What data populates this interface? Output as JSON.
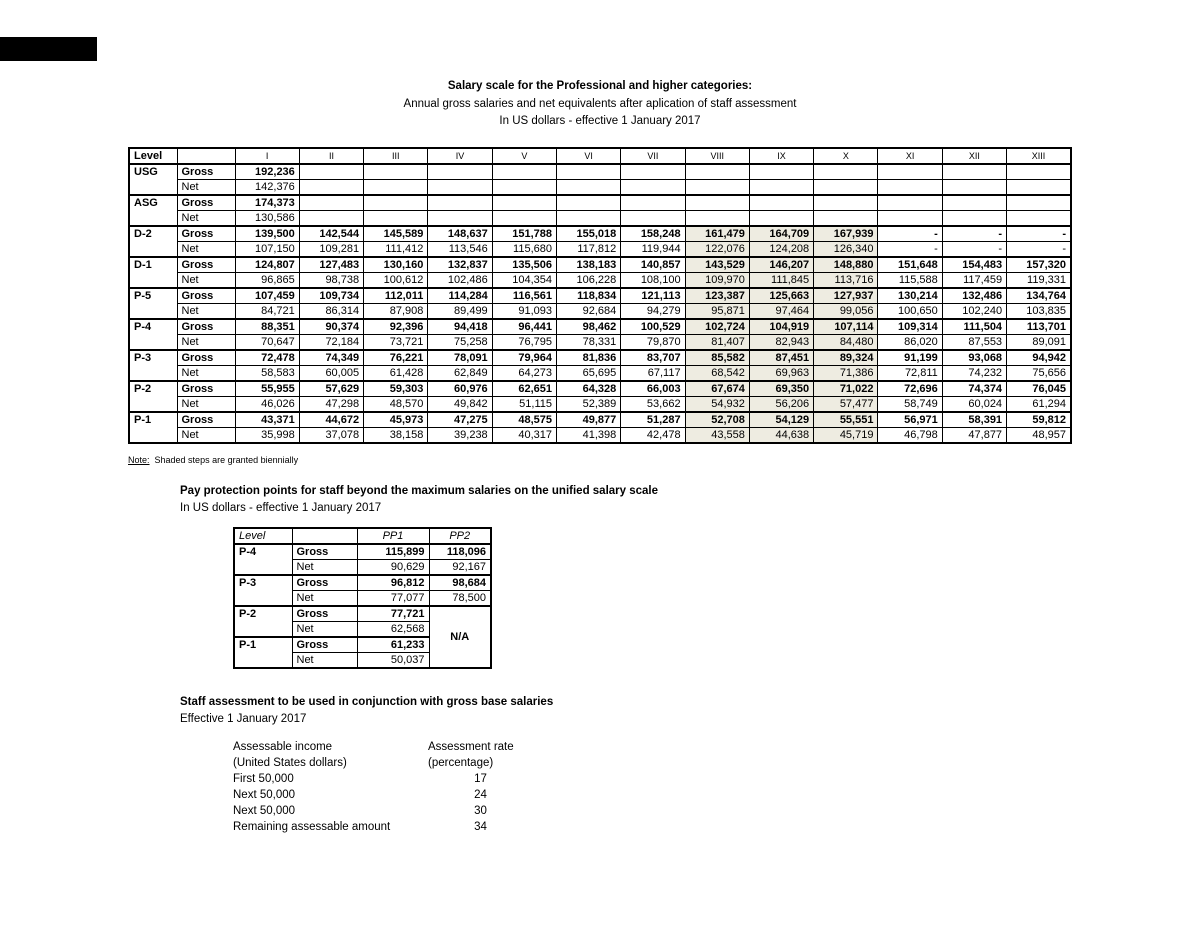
{
  "page": {
    "title_line1": "Salary scale for the Professional and higher categories:",
    "title_line2": "Annual gross salaries and net equivalents after aplication of staff assessment",
    "title_line3": "In US dollars - effective 1 January 2017"
  },
  "colors": {
    "shaded_step": "#EEECE1",
    "black_bar": "#000000"
  },
  "main_table": {
    "level_header": "Level",
    "gross_label": "Gross",
    "net_label": "Net",
    "columns": [
      "I",
      "II",
      "III",
      "IV",
      "V",
      "VI",
      "VII",
      "VIII",
      "IX",
      "X",
      "XI",
      "XII",
      "XIII"
    ],
    "rows": [
      {
        "level": "USG",
        "shaded_steps": [],
        "gross": [
          "192,236",
          "",
          "",
          "",
          "",
          "",
          "",
          "",
          "",
          "",
          "",
          "",
          ""
        ],
        "net": [
          "142,376",
          "",
          "",
          "",
          "",
          "",
          "",
          "",
          "",
          "",
          "",
          "",
          ""
        ]
      },
      {
        "level": "ASG",
        "shaded_steps": [],
        "gross": [
          "174,373",
          "",
          "",
          "",
          "",
          "",
          "",
          "",
          "",
          "",
          "",
          "",
          ""
        ],
        "net": [
          "130,586",
          "",
          "",
          "",
          "",
          "",
          "",
          "",
          "",
          "",
          "",
          "",
          ""
        ]
      },
      {
        "level": "D-2",
        "shaded_steps": [
          8,
          9,
          10
        ],
        "gross": [
          "139,500",
          "142,544",
          "145,589",
          "148,637",
          "151,788",
          "155,018",
          "158,248",
          "161,479",
          "164,709",
          "167,939",
          "-",
          "-",
          "-"
        ],
        "net": [
          "107,150",
          "109,281",
          "111,412",
          "113,546",
          "115,680",
          "117,812",
          "119,944",
          "122,076",
          "124,208",
          "126,340",
          "-",
          "-",
          "-"
        ]
      },
      {
        "level": "D-1",
        "shaded_steps": [
          8,
          9,
          10
        ],
        "gross": [
          "124,807",
          "127,483",
          "130,160",
          "132,837",
          "135,506",
          "138,183",
          "140,857",
          "143,529",
          "146,207",
          "148,880",
          "151,648",
          "154,483",
          "157,320"
        ],
        "net": [
          "96,865",
          "98,738",
          "100,612",
          "102,486",
          "104,354",
          "106,228",
          "108,100",
          "109,970",
          "111,845",
          "113,716",
          "115,588",
          "117,459",
          "119,331"
        ]
      },
      {
        "level": "P-5",
        "shaded_steps": [
          8,
          9,
          10
        ],
        "gross": [
          "107,459",
          "109,734",
          "112,011",
          "114,284",
          "116,561",
          "118,834",
          "121,113",
          "123,387",
          "125,663",
          "127,937",
          "130,214",
          "132,486",
          "134,764"
        ],
        "net": [
          "84,721",
          "86,314",
          "87,908",
          "89,499",
          "91,093",
          "92,684",
          "94,279",
          "95,871",
          "97,464",
          "99,056",
          "100,650",
          "102,240",
          "103,835"
        ]
      },
      {
        "level": "P-4",
        "shaded_steps": [
          8,
          9,
          10
        ],
        "gross": [
          "88,351",
          "90,374",
          "92,396",
          "94,418",
          "96,441",
          "98,462",
          "100,529",
          "102,724",
          "104,919",
          "107,114",
          "109,314",
          "111,504",
          "113,701"
        ],
        "net": [
          "70,647",
          "72,184",
          "73,721",
          "75,258",
          "76,795",
          "78,331",
          "79,870",
          "81,407",
          "82,943",
          "84,480",
          "86,020",
          "87,553",
          "89,091"
        ]
      },
      {
        "level": "P-3",
        "shaded_steps": [
          8,
          9,
          10
        ],
        "gross": [
          "72,478",
          "74,349",
          "76,221",
          "78,091",
          "79,964",
          "81,836",
          "83,707",
          "85,582",
          "87,451",
          "89,324",
          "91,199",
          "93,068",
          "94,942"
        ],
        "net": [
          "58,583",
          "60,005",
          "61,428",
          "62,849",
          "64,273",
          "65,695",
          "67,117",
          "68,542",
          "69,963",
          "71,386",
          "72,811",
          "74,232",
          "75,656"
        ]
      },
      {
        "level": "P-2",
        "shaded_steps": [
          8,
          9,
          10
        ],
        "gross": [
          "55,955",
          "57,629",
          "59,303",
          "60,976",
          "62,651",
          "64,328",
          "66,003",
          "67,674",
          "69,350",
          "71,022",
          "72,696",
          "74,374",
          "76,045"
        ],
        "net": [
          "46,026",
          "47,298",
          "48,570",
          "49,842",
          "51,115",
          "52,389",
          "53,662",
          "54,932",
          "56,206",
          "57,477",
          "58,749",
          "60,024",
          "61,294"
        ]
      },
      {
        "level": "P-1",
        "shaded_steps": [
          8,
          9,
          10
        ],
        "gross": [
          "43,371",
          "44,672",
          "45,973",
          "47,275",
          "48,575",
          "49,877",
          "51,287",
          "52,708",
          "54,129",
          "55,551",
          "56,971",
          "58,391",
          "59,812"
        ],
        "net": [
          "35,998",
          "37,078",
          "38,158",
          "39,238",
          "40,317",
          "41,398",
          "42,478",
          "43,558",
          "44,638",
          "45,719",
          "46,798",
          "47,877",
          "48,957"
        ]
      }
    ]
  },
  "note": {
    "label": "Note:",
    "text": "Shaded steps are granted biennially"
  },
  "pp_section": {
    "heading": "Pay protection points for staff beyond the maximum salaries on the unified salary scale",
    "subheading": "In US dollars - effective 1 January 2017"
  },
  "pp_table": {
    "level_header": "Level",
    "pp1_header": "PP1",
    "pp2_header": "PP2",
    "gross_label": "Gross",
    "net_label": "Net",
    "na_label": "N/A",
    "rows": [
      {
        "level": "P-4",
        "gross_pp1": "115,899",
        "gross_pp2": "118,096",
        "net_pp1": "90,629",
        "net_pp2": "92,167"
      },
      {
        "level": "P-3",
        "gross_pp1": "96,812",
        "gross_pp2": "98,684",
        "net_pp1": "77,077",
        "net_pp2": "78,500"
      },
      {
        "level": "P-2",
        "gross_pp1": "77,721",
        "net_pp1": "62,568",
        "na_span": true
      },
      {
        "level": "P-1",
        "gross_pp1": "61,233",
        "net_pp1": "50,037"
      }
    ]
  },
  "sa_section": {
    "heading": "Staff assessment to be used in conjunction with gross base salaries",
    "subheading": "Effective 1 January 2017",
    "col1_header1": "Assessable income",
    "col1_header2": "(United States dollars)",
    "col2_header1": "Assessment rate",
    "col2_header2": "(percentage)",
    "rows": [
      {
        "income": "First 50,000",
        "rate": "17"
      },
      {
        "income": "Next 50,000",
        "rate": "24"
      },
      {
        "income": "Next 50,000",
        "rate": "30"
      },
      {
        "income": "Remaining assessable amount",
        "rate": "34"
      }
    ]
  }
}
